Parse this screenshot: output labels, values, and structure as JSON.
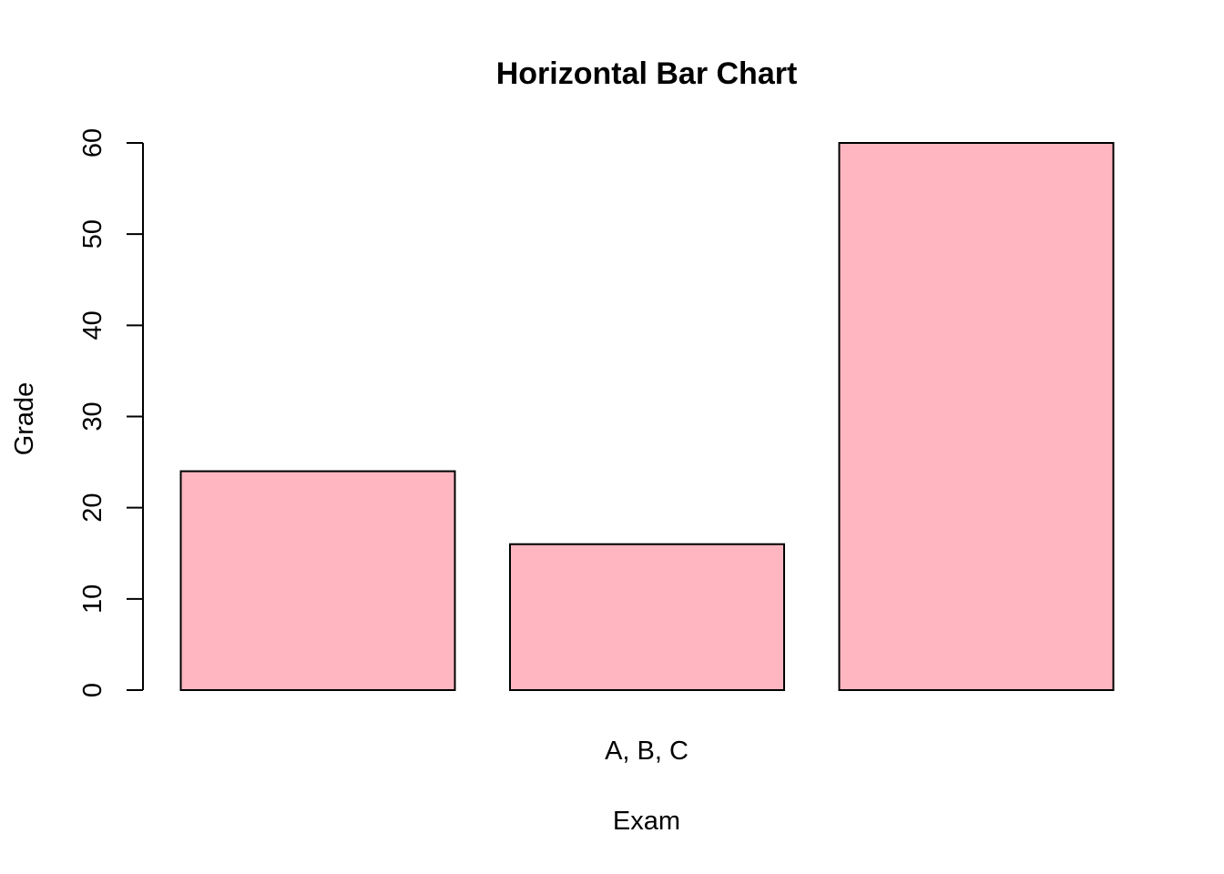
{
  "chart_data": {
    "type": "bar",
    "title": "Horizontal Bar Chart",
    "xlabel": "Exam",
    "ylabel": "Grade",
    "category_label": "A, B, C",
    "values": [
      24,
      16,
      60
    ],
    "ylim": [
      0,
      60
    ],
    "yticks": [
      0,
      10,
      20,
      30,
      40,
      50,
      60
    ],
    "bar_color": "#ffb6c1",
    "bar_border_color": "#000000",
    "grid": false
  }
}
